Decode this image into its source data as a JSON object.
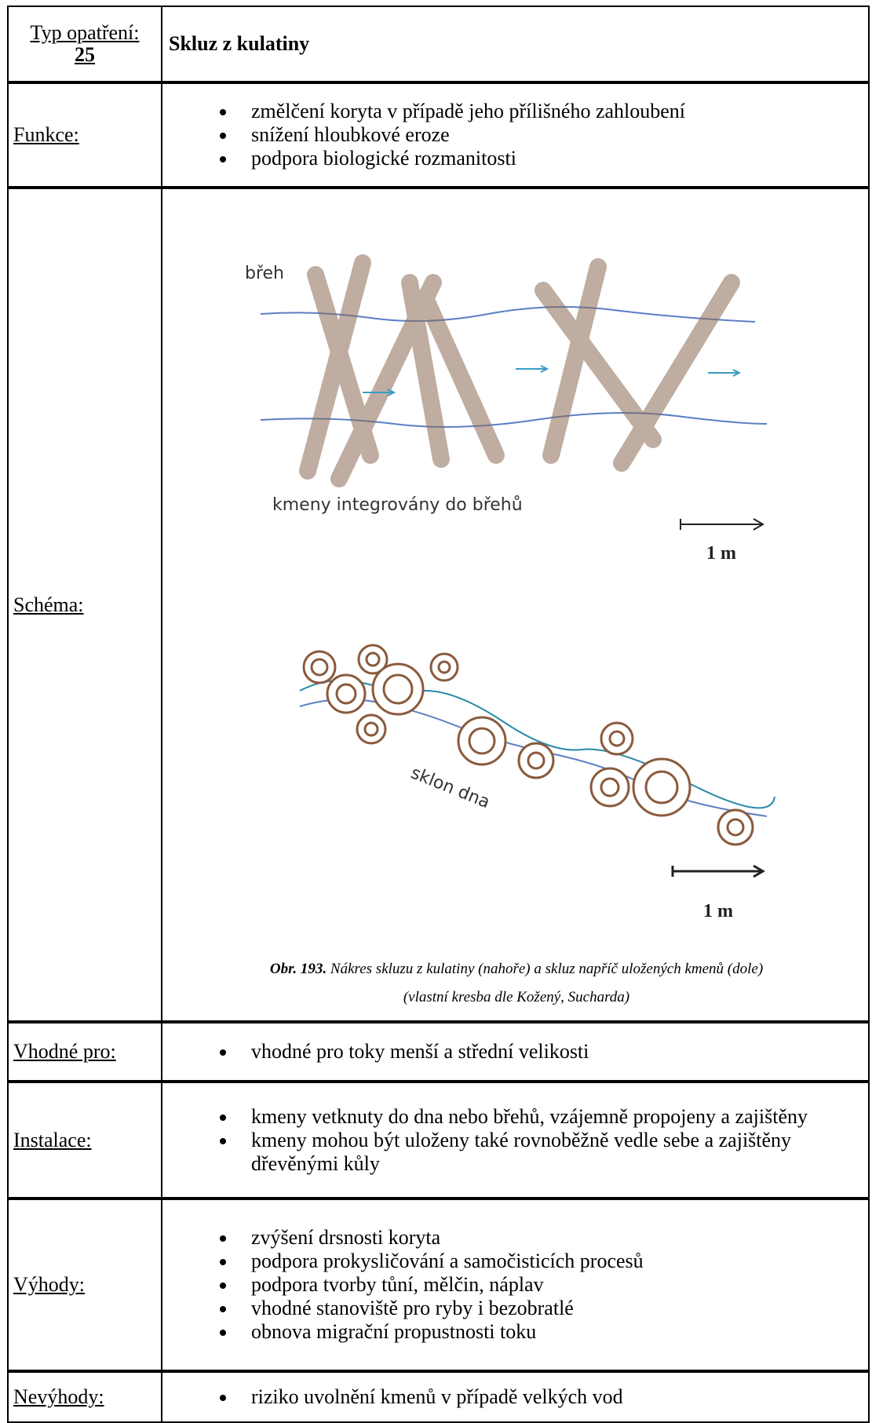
{
  "table": {
    "rows": [
      {
        "label": "Typ opatření:",
        "label_number": "25",
        "content": "Skluz z kulatiny"
      },
      {
        "label": "Funkce:",
        "items": [
          "změlčení koryta v případě jeho přílišného zahloubení",
          "snížení hloubkové eroze",
          "podpora biologické rozmanitosti"
        ]
      },
      {
        "label": "Schéma:",
        "figure": {
          "top_bank": "břeh",
          "top_note": "kmeny integrovány do břehů",
          "top_scale": "1 m",
          "bottom_note": "sklon dna",
          "bottom_scale": "1 m",
          "caption_number": "Obr. 193.",
          "caption_line1": "Nákres skluzu z kulatiny (nahoře) a skluz napříč uložených kmenů (dole)",
          "caption_line2": "(vlastní kresba dle Kožený, Sucharda)"
        }
      },
      {
        "label": "Vhodné pro:",
        "items": [
          "vhodné pro toky menší a střední velikosti"
        ]
      },
      {
        "label": "Instalace:",
        "items": [
          "kmeny vetknuty do dna nebo břehů, vzájemně propojeny a zajištěny",
          "kmeny mohou být uloženy také rovnoběžně vedle sebe a zajištěny dřevěnými kůly"
        ]
      },
      {
        "label": "Výhody:",
        "items": [
          "zvýšení drsnosti koryta",
          "podpora prokysličování a samočisticích procesů",
          "podpora tvorby tůní, mělčin, náplav",
          "vhodné stanoviště pro ryby i bezobratlé",
          "obnova migrační propustnosti toku"
        ]
      },
      {
        "label": "Nevýhody:",
        "items": [
          "riziko uvolnění kmenů v případě velkých vod"
        ]
      }
    ]
  }
}
